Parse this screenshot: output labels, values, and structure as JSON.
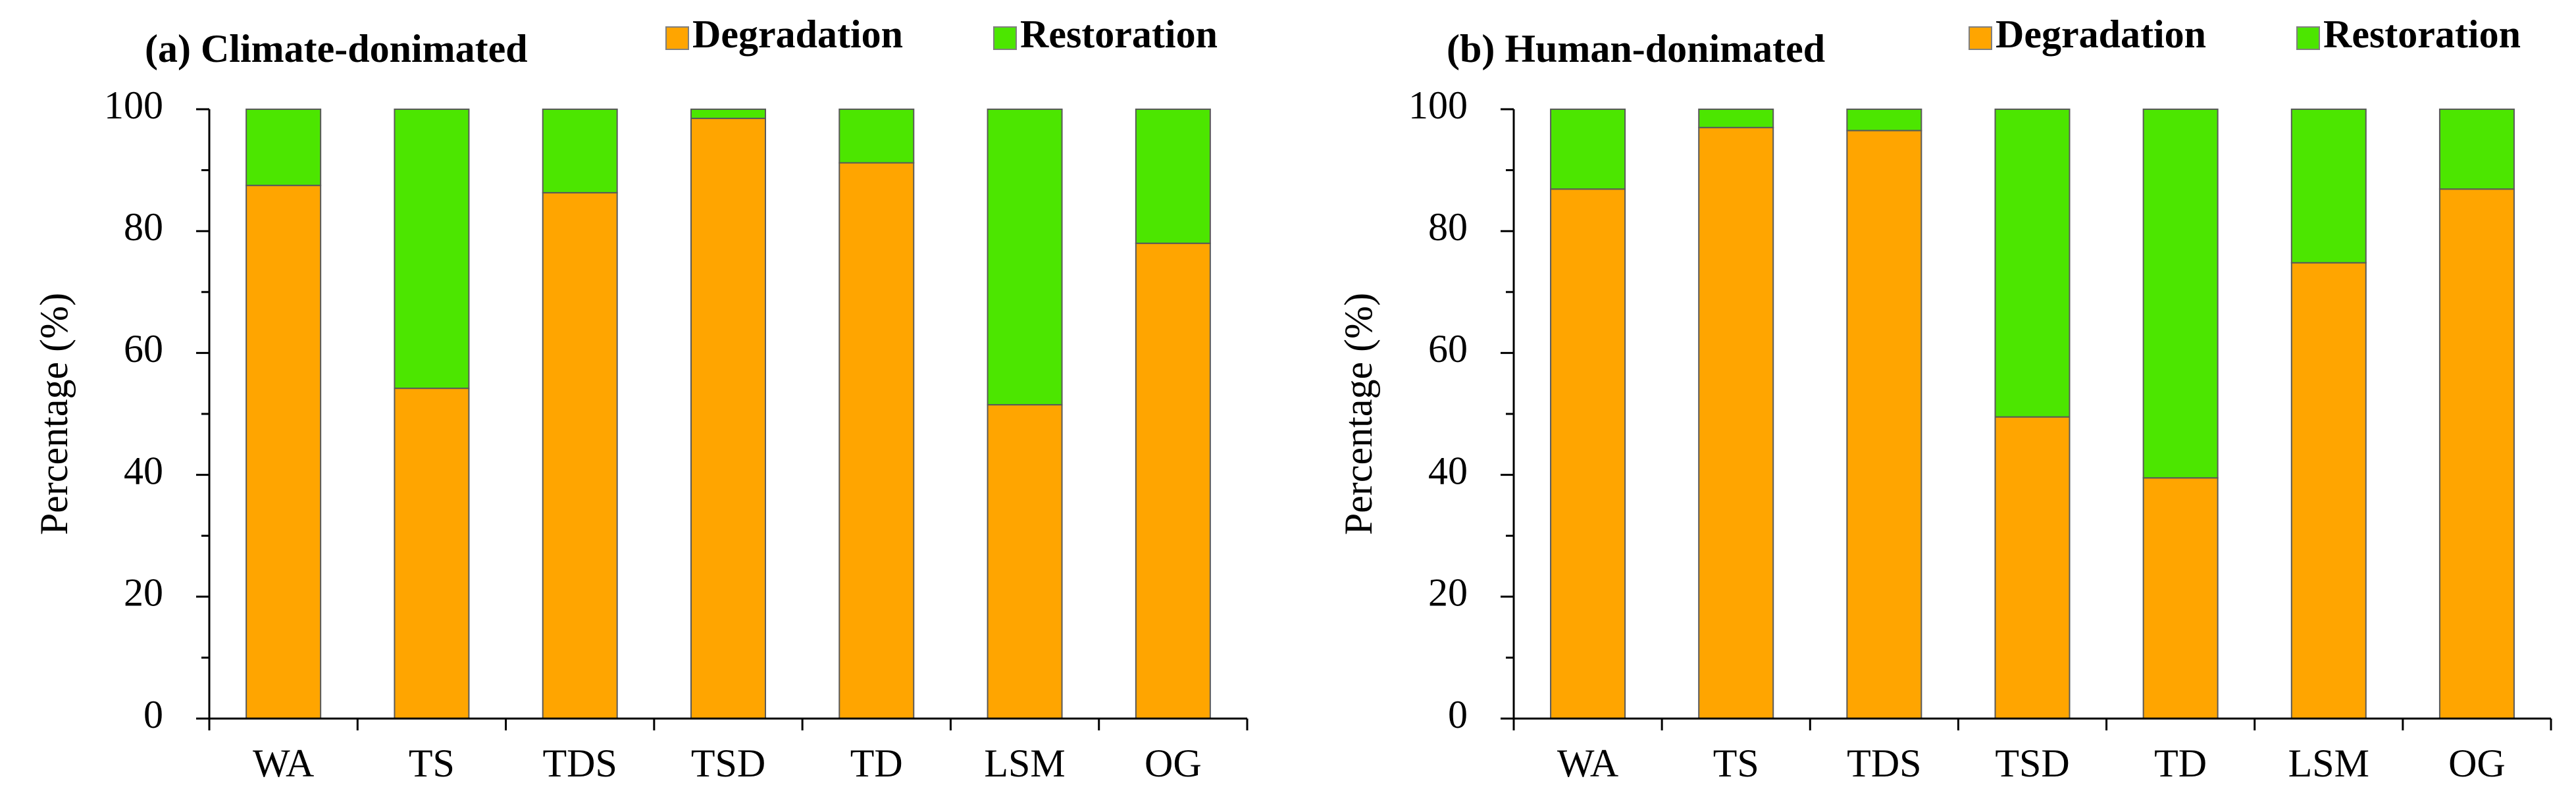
{
  "chart_data": [
    {
      "type": "bar",
      "stacked": true,
      "title": "(a) Climate-donimated",
      "xlabel": "",
      "ylabel": "Percentage (%)",
      "ylim": [
        0,
        100
      ],
      "yticks": [
        0,
        20,
        40,
        60,
        80,
        100
      ],
      "grid": false,
      "legend_position": "top-right",
      "categories": [
        "WA",
        "TS",
        "TDS",
        "TSD",
        "TD",
        "LSM",
        "OG"
      ],
      "series": [
        {
          "name": "Degradation",
          "color": "#FFA500",
          "values": [
            87.5,
            54.2,
            86.3,
            98.5,
            91.2,
            51.5,
            78.0
          ]
        },
        {
          "name": "Restoration",
          "color": "#4CE600",
          "values": [
            12.5,
            45.8,
            13.7,
            1.5,
            8.8,
            48.5,
            22.0
          ]
        }
      ]
    },
    {
      "type": "bar",
      "stacked": true,
      "title": "(b) Human-donimated",
      "xlabel": "",
      "ylabel": "Percentage (%)",
      "ylim": [
        0,
        100
      ],
      "yticks": [
        0,
        20,
        40,
        60,
        80,
        100
      ],
      "grid": false,
      "legend_position": "top-right",
      "categories": [
        "WA",
        "TS",
        "TDS",
        "TSD",
        "TD",
        "LSM",
        "OG"
      ],
      "series": [
        {
          "name": "Degradation",
          "color": "#FFA500",
          "values": [
            86.9,
            97.0,
            96.5,
            49.5,
            39.5,
            74.8,
            86.9
          ]
        },
        {
          "name": "Restoration",
          "color": "#4CE600",
          "values": [
            13.1,
            3.0,
            3.5,
            50.5,
            60.5,
            25.2,
            13.1
          ]
        }
      ]
    }
  ]
}
